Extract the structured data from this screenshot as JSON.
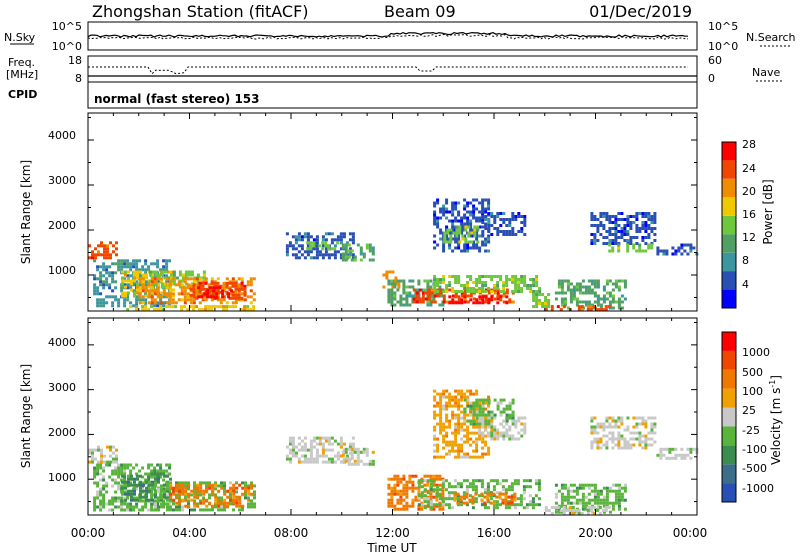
{
  "header": {
    "station": "Zhongshan Station (fitACF)",
    "beam": "Beam 09",
    "date": "01/Dec/2019"
  },
  "noise_panel": {
    "left_label": "N.Sky",
    "left_ticks": [
      "10^5",
      "10^0"
    ],
    "right_label": "N.Search",
    "right_ticks": [
      "10^5",
      "10^0"
    ]
  },
  "freq_panel": {
    "left_label_1": "Freq.",
    "left_label_2": "[MHz]",
    "left_ticks": [
      "18",
      "8"
    ],
    "right_label": "Nave",
    "right_ticks": [
      "60",
      "0"
    ]
  },
  "cpid_panel": {
    "label": "CPID",
    "program": "normal (fast stereo) 153"
  },
  "colors": {
    "scale_power": [
      "#0000ff",
      "#2850b4",
      "#3c96a0",
      "#50a064",
      "#6ec83c",
      "#f0c800",
      "#f08c00",
      "#f04600",
      "#ff0000"
    ],
    "scale_velocity": [
      "#2850b4",
      "#3c6e8c",
      "#3c8c50",
      "#5ab43c",
      "#c8c8c8",
      "#f0a000",
      "#f07800",
      "#f04600",
      "#ff0000"
    ]
  },
  "chart_data": [
    {
      "type": "heatmap",
      "panel": "power",
      "ylabel": "Slant Range [km]",
      "y_ticks": [
        "1000",
        "2000",
        "3000",
        "4000"
      ],
      "ylim": [
        200,
        4600
      ],
      "x_ticks": [
        "00:00",
        "04:00",
        "08:00",
        "12:00",
        "16:00",
        "20:00",
        "00:00"
      ],
      "xlim_hours": [
        0,
        24
      ],
      "colorbar_label": "Power [dB]",
      "colorbar_ticks": [
        "28",
        "24",
        "20",
        "16",
        "12",
        "8",
        "4"
      ],
      "regions": [
        {
          "t0": 0.0,
          "t1": 1.1,
          "r0": 1400,
          "r1": 1750,
          "level": 7
        },
        {
          "t0": 0.2,
          "t1": 3.2,
          "r0": 300,
          "r1": 1350,
          "level": 2
        },
        {
          "t0": 1.3,
          "t1": 3.4,
          "r0": 500,
          "r1": 1100,
          "level": 5
        },
        {
          "t0": 2.4,
          "t1": 4.6,
          "r0": 700,
          "r1": 1100,
          "level": 4
        },
        {
          "t0": 2.0,
          "t1": 6.6,
          "r0": 400,
          "r1": 950,
          "level": 6
        },
        {
          "t0": 4.0,
          "t1": 6.2,
          "r0": 450,
          "r1": 850,
          "level": 7
        },
        {
          "t0": 4.3,
          "t1": 5.8,
          "r0": 500,
          "r1": 750,
          "level": 8
        },
        {
          "t0": 1.5,
          "t1": 6.5,
          "r0": 250,
          "r1": 330,
          "level": 5
        },
        {
          "t0": 7.8,
          "t1": 10.5,
          "r0": 1350,
          "r1": 1950,
          "level": 1
        },
        {
          "t0": 8.6,
          "t1": 9.8,
          "r0": 1550,
          "r1": 1750,
          "level": 4
        },
        {
          "t0": 10.0,
          "t1": 11.2,
          "r0": 1300,
          "r1": 1700,
          "level": 3
        },
        {
          "t0": 11.6,
          "t1": 12.2,
          "r0": 700,
          "r1": 1100,
          "level": 6
        },
        {
          "t0": 11.8,
          "t1": 14.0,
          "r0": 300,
          "r1": 900,
          "level": 3
        },
        {
          "t0": 12.8,
          "t1": 16.8,
          "r0": 400,
          "r1": 700,
          "level": 7
        },
        {
          "t0": 14.2,
          "t1": 16.6,
          "r0": 350,
          "r1": 550,
          "level": 8
        },
        {
          "t0": 13.6,
          "t1": 17.8,
          "r0": 650,
          "r1": 1000,
          "level": 4
        },
        {
          "t0": 13.6,
          "t1": 15.8,
          "r0": 1500,
          "r1": 2700,
          "level": 1
        },
        {
          "t0": 14.0,
          "t1": 15.4,
          "r0": 1700,
          "r1": 2100,
          "level": 4
        },
        {
          "t0": 15.5,
          "t1": 17.2,
          "r0": 1900,
          "r1": 2400,
          "level": 1
        },
        {
          "t0": 17.5,
          "t1": 18.2,
          "r0": 300,
          "r1": 600,
          "level": 4
        },
        {
          "t0": 18.4,
          "t1": 21.2,
          "r0": 250,
          "r1": 900,
          "level": 3
        },
        {
          "t0": 18.0,
          "t1": 20.5,
          "r0": 250,
          "r1": 330,
          "level": 7
        },
        {
          "t0": 19.8,
          "t1": 22.4,
          "r0": 1700,
          "r1": 2400,
          "level": 1
        },
        {
          "t0": 20.5,
          "t1": 22.2,
          "r0": 1500,
          "r1": 1700,
          "level": 4
        },
        {
          "t0": 22.4,
          "t1": 24.0,
          "r0": 1450,
          "r1": 1700,
          "level": 1
        }
      ]
    },
    {
      "type": "heatmap",
      "panel": "velocity",
      "ylabel": "Slant Range [km]",
      "y_ticks": [
        "1000",
        "2000",
        "3000",
        "4000"
      ],
      "ylim": [
        200,
        4600
      ],
      "x_ticks": [
        "00:00",
        "04:00",
        "08:00",
        "12:00",
        "16:00",
        "20:00",
        "00:00"
      ],
      "xlim_hours": [
        0,
        24
      ],
      "xlabel": "Time UT",
      "colorbar_label": "Velocity [m s-1]",
      "colorbar_ticks": [
        "1000",
        "500",
        "100",
        "25",
        "-25",
        "-100",
        "-500",
        "-1000"
      ],
      "regions": [
        {
          "t0": 0.0,
          "t1": 1.1,
          "r0": 1400,
          "r1": 1750,
          "level": 4
        },
        {
          "t0": 0.2,
          "t1": 3.2,
          "r0": 300,
          "r1": 1350,
          "level": 3
        },
        {
          "t0": 1.3,
          "t1": 3.2,
          "r0": 500,
          "r1": 1100,
          "level": 2
        },
        {
          "t0": 2.6,
          "t1": 6.6,
          "r0": 300,
          "r1": 950,
          "level": 3
        },
        {
          "t0": 3.2,
          "t1": 6.4,
          "r0": 400,
          "r1": 900,
          "level": 6
        },
        {
          "t0": 7.8,
          "t1": 10.5,
          "r0": 1350,
          "r1": 1950,
          "level": 4
        },
        {
          "t0": 10.0,
          "t1": 11.2,
          "r0": 1300,
          "r1": 1700,
          "level": 4
        },
        {
          "t0": 11.8,
          "t1": 14.0,
          "r0": 300,
          "r1": 1100,
          "level": 6
        },
        {
          "t0": 13.0,
          "t1": 17.8,
          "r0": 350,
          "r1": 1000,
          "level": 3
        },
        {
          "t0": 14.4,
          "t1": 16.8,
          "r0": 450,
          "r1": 700,
          "level": 6
        },
        {
          "t0": 13.6,
          "t1": 15.8,
          "r0": 1500,
          "r1": 3000,
          "level": 5
        },
        {
          "t0": 14.8,
          "t1": 16.8,
          "r0": 2200,
          "r1": 2800,
          "level": 3
        },
        {
          "t0": 15.5,
          "t1": 17.2,
          "r0": 1900,
          "r1": 2400,
          "level": 4
        },
        {
          "t0": 18.4,
          "t1": 21.2,
          "r0": 250,
          "r1": 900,
          "level": 3
        },
        {
          "t0": 18.0,
          "t1": 20.5,
          "r0": 250,
          "r1": 400,
          "level": 4
        },
        {
          "t0": 19.8,
          "t1": 22.4,
          "r0": 1700,
          "r1": 2400,
          "level": 4
        },
        {
          "t0": 22.4,
          "t1": 24.0,
          "r0": 1450,
          "r1": 1700,
          "level": 4
        }
      ]
    }
  ]
}
